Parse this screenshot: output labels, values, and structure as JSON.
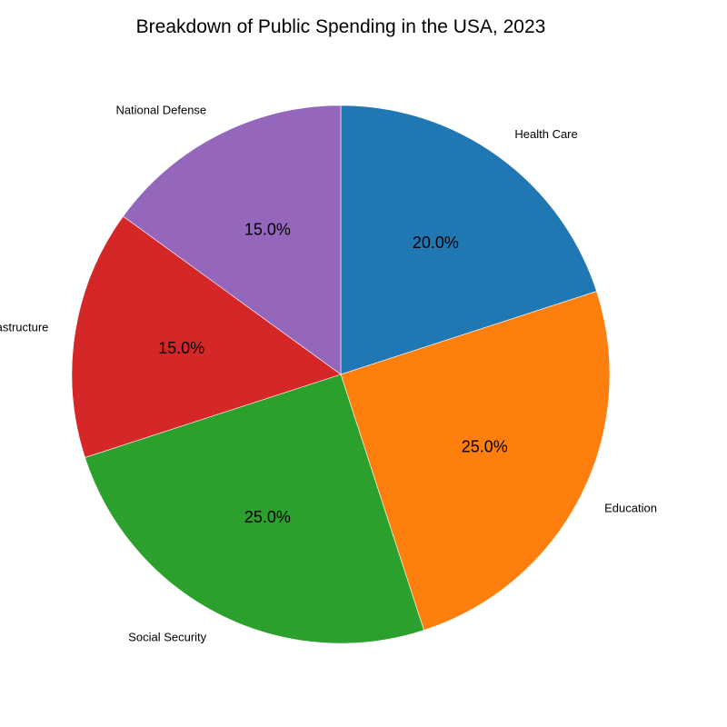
{
  "chart_data": {
    "type": "pie",
    "title": "Breakdown of Public Spending in the USA, 2023",
    "start_angle_deg": 90,
    "direction": "clockwise",
    "slices": [
      {
        "label": "Health Care",
        "value": 20,
        "pct_label": "20.0%",
        "color": "#1f77b4"
      },
      {
        "label": "Education",
        "value": 25,
        "pct_label": "25.0%",
        "color": "#ff7f0e"
      },
      {
        "label": "Social Security",
        "value": 25,
        "pct_label": "25.0%",
        "color": "#2ca02c"
      },
      {
        "label": "Infrastructure",
        "value": 15,
        "pct_label": "15.0%",
        "color": "#d62728"
      },
      {
        "label": "National Defense",
        "value": 15,
        "pct_label": "15.0%",
        "color": "#9467bd"
      }
    ]
  }
}
